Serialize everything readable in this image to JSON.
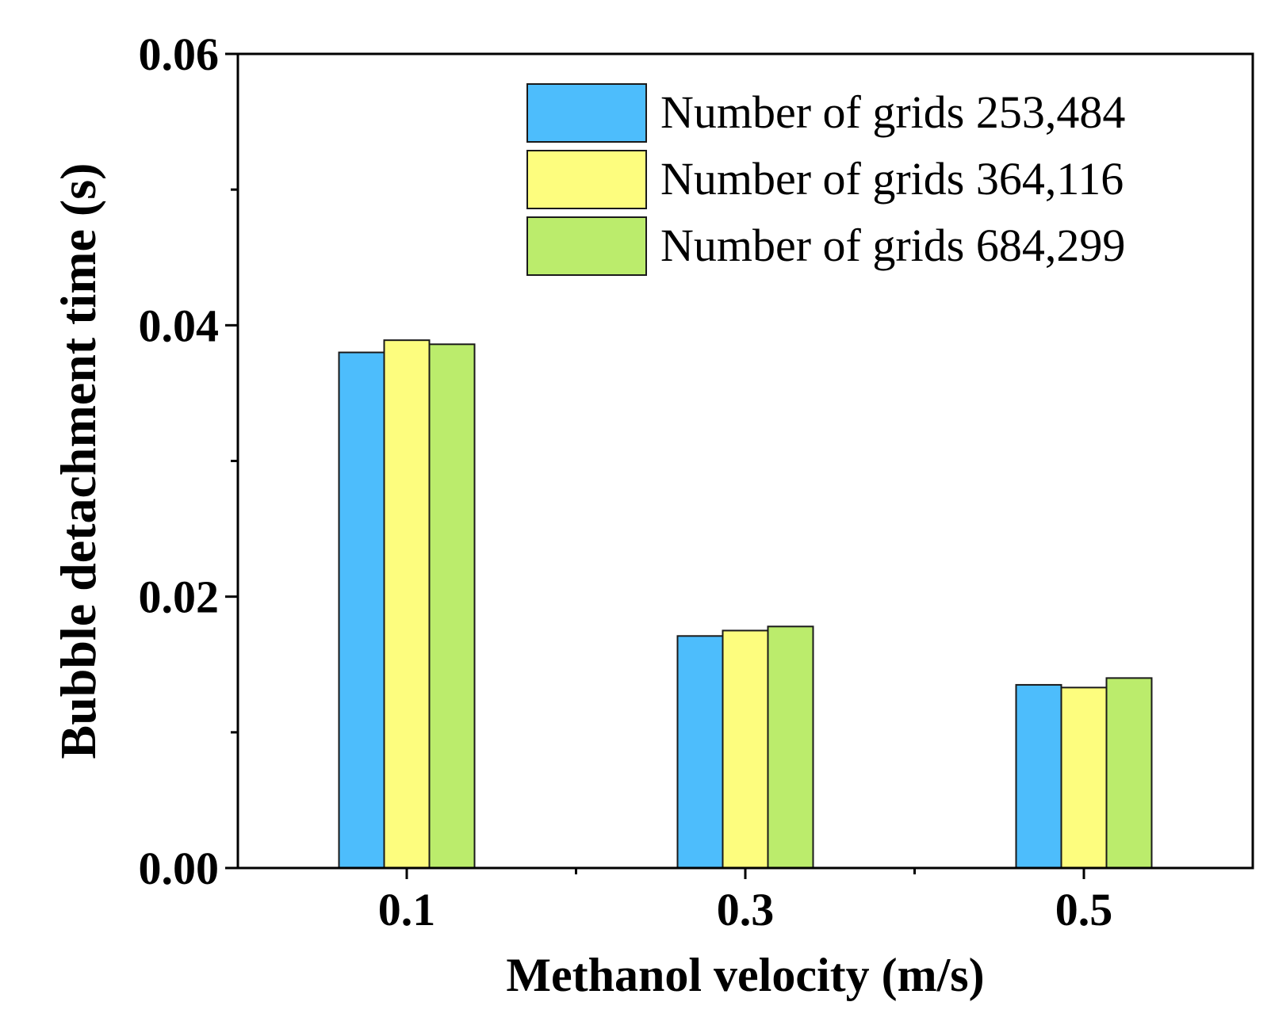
{
  "chart_data": {
    "type": "bar",
    "title": "",
    "xlabel": "Methanol velocity (m/s)",
    "ylabel": "Bubble detachment time (s)",
    "categories": [
      "0.1",
      "0.3",
      "0.5"
    ],
    "ylim": [
      0,
      0.06
    ],
    "yticks": [
      0.0,
      0.02,
      0.04,
      0.06
    ],
    "ytick_labels": [
      "0.00",
      "0.02",
      "0.04",
      "0.06"
    ],
    "y_minor_ticks": [
      0.01,
      0.03,
      0.05
    ],
    "grid": false,
    "legend_position": "top-right",
    "series": [
      {
        "name": "Number of grids 253,484",
        "color": "#4dbdfc",
        "values": [
          0.038,
          0.0171,
          0.0135
        ]
      },
      {
        "name": "Number of grids 364,116",
        "color": "#fdfd7e",
        "values": [
          0.0389,
          0.0175,
          0.0133
        ]
      },
      {
        "name": "Number of grids 684,299",
        "color": "#bbec6c",
        "values": [
          0.0386,
          0.0178,
          0.014
        ]
      }
    ]
  }
}
